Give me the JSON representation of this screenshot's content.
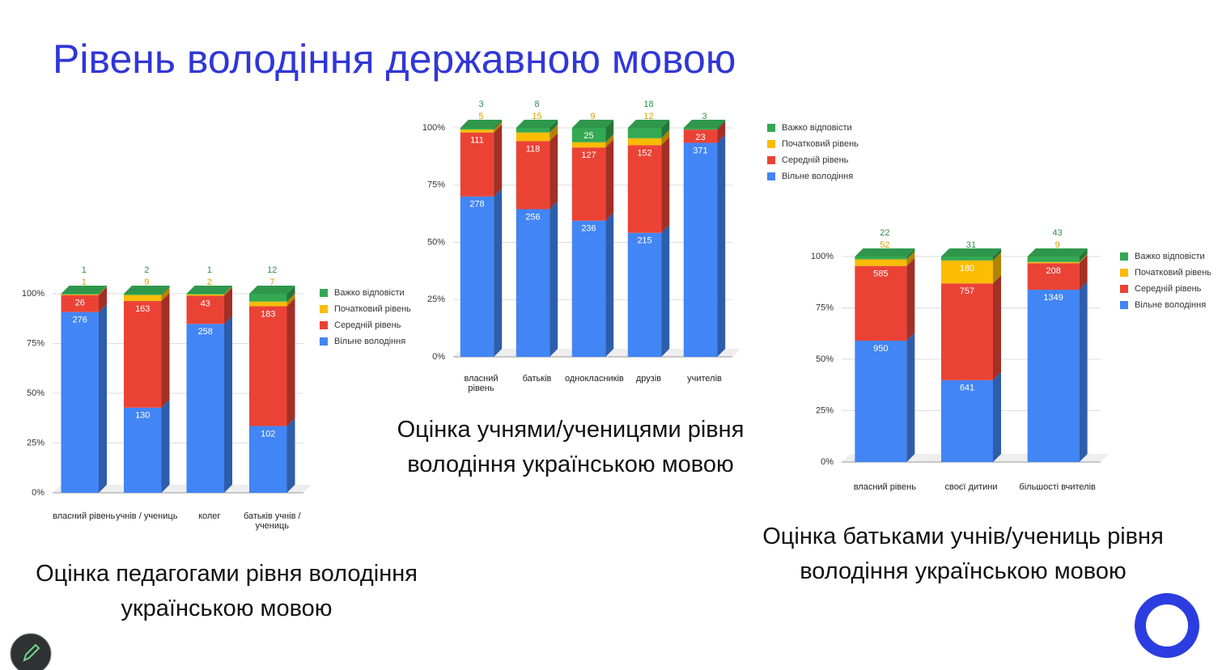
{
  "title": "Рівень володіння державною мовою",
  "chart_data": [
    {
      "type": "stacked_percent_bar",
      "caption": "Оцінка педагогами рівня володіння українською мовою",
      "categories": [
        "власний рівень",
        "учнів / учениць",
        "колег",
        "батьків учнів / учениць"
      ],
      "series": [
        {
          "name": "Вільне володіння",
          "color": "#4285f4",
          "values": [
            276,
            130,
            258,
            102
          ]
        },
        {
          "name": "Середній рівень",
          "color": "#ea4335",
          "values": [
            26,
            163,
            43,
            183
          ]
        },
        {
          "name": "Початковий рівень",
          "color": "#fbbc04",
          "values": [
            1,
            9,
            2,
            7
          ]
        },
        {
          "name": "Важко відповісти",
          "color": "#34a853",
          "values": [
            1,
            2,
            1,
            12
          ]
        }
      ],
      "ylim": [
        0,
        100
      ],
      "yticks": [
        {
          "value": 0,
          "label": "0%"
        },
        {
          "value": 25,
          "label": "25%"
        },
        {
          "value": 50,
          "label": "50%"
        },
        {
          "value": 75,
          "label": "75%"
        },
        {
          "value": 100,
          "label": "100%"
        }
      ]
    },
    {
      "type": "stacked_percent_bar",
      "caption": "Оцінка учнями/ученицями рівня володіння українською мовою",
      "categories": [
        "власний рівень",
        "батьків",
        "однокласників",
        "друзів",
        "учителів"
      ],
      "series": [
        {
          "name": "Вільне володіння",
          "color": "#4285f4",
          "values": [
            278,
            256,
            236,
            215,
            371
          ]
        },
        {
          "name": "Середній рівень",
          "color": "#ea4335",
          "values": [
            111,
            118,
            127,
            152,
            23
          ]
        },
        {
          "name": "Початковий рівень",
          "color": "#fbbc04",
          "values": [
            5,
            15,
            9,
            12,
            null
          ]
        },
        {
          "name": "Важко відповісти",
          "color": "#34a853",
          "values": [
            3,
            8,
            25,
            18,
            3
          ]
        }
      ],
      "ylim": [
        0,
        100
      ],
      "yticks": [
        {
          "value": 0,
          "label": "0%"
        },
        {
          "value": 25,
          "label": "25%"
        },
        {
          "value": 50,
          "label": "50%"
        },
        {
          "value": 75,
          "label": "75%"
        },
        {
          "value": 100,
          "label": "100%"
        }
      ]
    },
    {
      "type": "stacked_percent_bar",
      "caption": "Оцінка батьками учнів/учениць рівня володіння українською мовою",
      "categories": [
        "власний рівень",
        "своєї дитини",
        "більшості вчителів"
      ],
      "series": [
        {
          "name": "Вільне володіння",
          "color": "#4285f4",
          "values": [
            950,
            641,
            1349
          ]
        },
        {
          "name": "Середній рівень",
          "color": "#ea4335",
          "values": [
            585,
            757,
            208
          ]
        },
        {
          "name": "Початковий рівень",
          "color": "#fbbc04",
          "values": [
            52,
            180,
            9
          ]
        },
        {
          "name": "Важко відповісти",
          "color": "#34a853",
          "values": [
            22,
            31,
            43
          ]
        }
      ],
      "ylim": [
        0,
        100
      ],
      "yticks": [
        {
          "value": 0,
          "label": "0%"
        },
        {
          "value": 25,
          "label": "25%"
        },
        {
          "value": 50,
          "label": "50%"
        },
        {
          "value": 75,
          "label": "75%"
        },
        {
          "value": 100,
          "label": "100%"
        }
      ]
    }
  ]
}
